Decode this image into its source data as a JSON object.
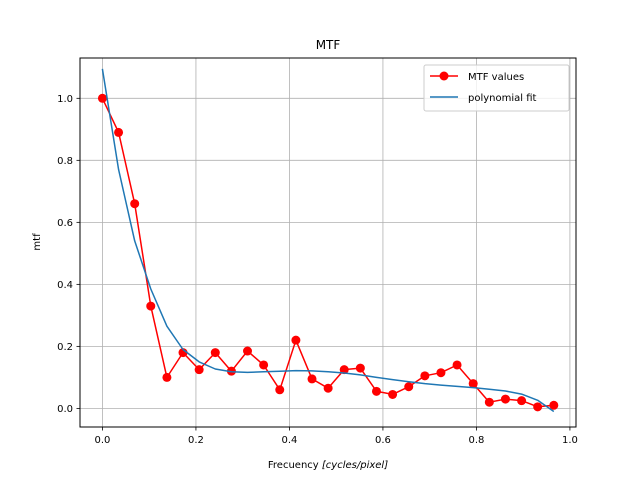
{
  "chart_data": {
    "type": "line",
    "title": "MTF",
    "xlabel_prefix": "Frecuency ",
    "xlabel_math": "[cycles/pixel]",
    "ylabel": "mtf",
    "xlim": [
      -0.048,
      1.013
    ],
    "ylim": [
      -0.06,
      1.13
    ],
    "xticks": [
      0.0,
      0.2,
      0.4,
      0.6,
      0.8,
      1.0
    ],
    "xtick_labels": [
      "0.0",
      "0.2",
      "0.4",
      "0.6",
      "0.8",
      "1.0"
    ],
    "yticks": [
      0.0,
      0.2,
      0.4,
      0.6,
      0.8,
      1.0
    ],
    "ytick_labels": [
      "0.0",
      "0.2",
      "0.4",
      "0.6",
      "0.8",
      "1.0"
    ],
    "grid": true,
    "legend_position": "top-right",
    "series": [
      {
        "name": "MTF values",
        "color": "#ff0000",
        "marker": "circle",
        "x": [
          0.0,
          0.0345,
          0.069,
          0.1034,
          0.1379,
          0.1724,
          0.2069,
          0.2414,
          0.2759,
          0.3103,
          0.3448,
          0.3793,
          0.4138,
          0.4483,
          0.4828,
          0.5172,
          0.5517,
          0.5862,
          0.6207,
          0.6552,
          0.6897,
          0.7241,
          0.7586,
          0.7931,
          0.8276,
          0.8621,
          0.8966,
          0.931,
          0.9655
        ],
        "y": [
          1.0,
          0.89,
          0.66,
          0.33,
          0.1,
          0.18,
          0.125,
          0.18,
          0.12,
          0.185,
          0.14,
          0.06,
          0.22,
          0.095,
          0.065,
          0.125,
          0.13,
          0.055,
          0.045,
          0.07,
          0.105,
          0.115,
          0.14,
          0.08,
          0.02,
          0.03,
          0.025,
          0.005,
          0.01
        ]
      },
      {
        "name": "polynomial fit",
        "color": "#1f77b4",
        "marker": "none",
        "x": [
          0.0,
          0.0345,
          0.069,
          0.1034,
          0.1379,
          0.1724,
          0.2069,
          0.2414,
          0.2759,
          0.3103,
          0.3448,
          0.3793,
          0.4138,
          0.4483,
          0.4828,
          0.5172,
          0.5517,
          0.5862,
          0.6207,
          0.6552,
          0.6897,
          0.7241,
          0.7586,
          0.7931,
          0.8276,
          0.8621,
          0.8966,
          0.931,
          0.9655
        ],
        "y": [
          1.095,
          0.77,
          0.54,
          0.385,
          0.265,
          0.19,
          0.15,
          0.127,
          0.118,
          0.116,
          0.118,
          0.12,
          0.122,
          0.121,
          0.118,
          0.114,
          0.108,
          0.1,
          0.093,
          0.086,
          0.08,
          0.075,
          0.071,
          0.067,
          0.062,
          0.056,
          0.046,
          0.026,
          -0.01
        ]
      }
    ]
  }
}
